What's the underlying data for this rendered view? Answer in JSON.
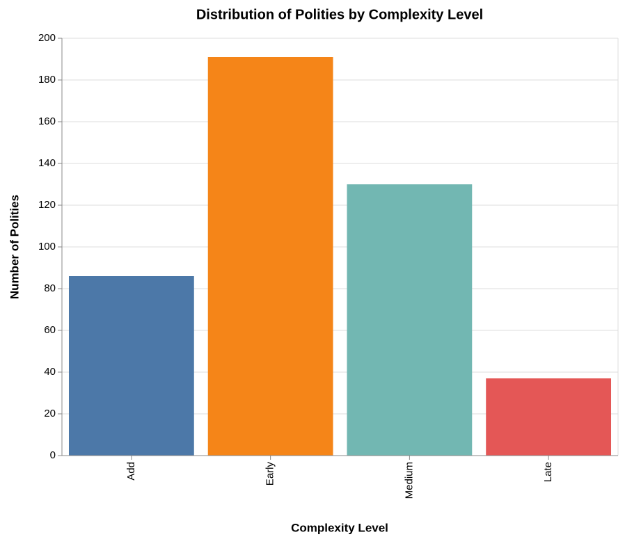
{
  "chart_data": {
    "type": "bar",
    "title": "Distribution of Polities by Complexity Level",
    "x_label": "Complexity Level",
    "y_label": "Number of Polities",
    "categories": [
      "Add",
      "Early",
      "Medium",
      "Late"
    ],
    "values": [
      86,
      191,
      130,
      37
    ],
    "colors": [
      "#4c78a8",
      "#f58518",
      "#72b7b2",
      "#e45756"
    ],
    "ylim": [
      0,
      200
    ],
    "yticks": [
      0,
      20,
      40,
      60,
      80,
      100,
      120,
      140,
      160,
      180,
      200
    ],
    "grid": true
  }
}
